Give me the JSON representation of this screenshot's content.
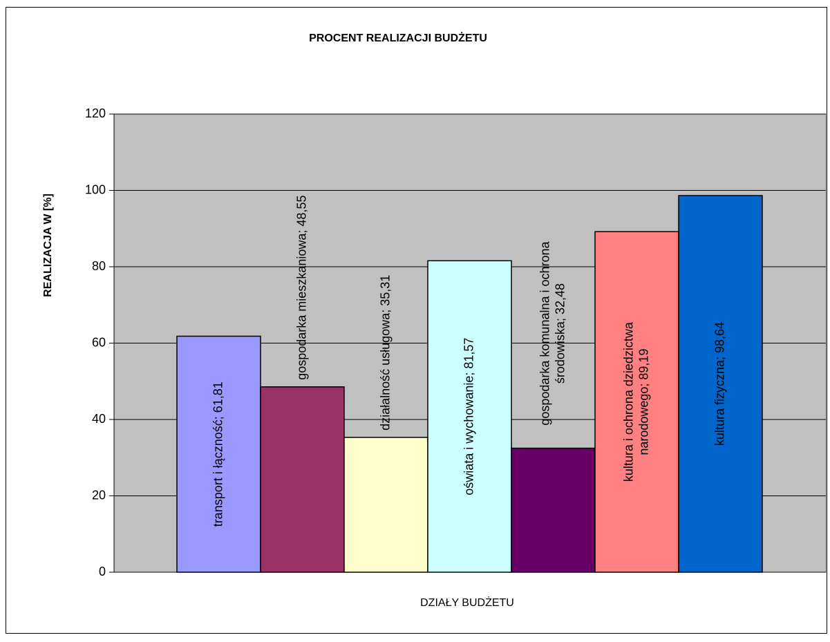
{
  "chart_data": {
    "type": "bar",
    "title": "PROCENT REALIZACJI BUDŻETU",
    "xlabel": "DZIAŁY BUDŻETU",
    "ylabel": "REALIZACJA W [%]",
    "values": [
      61.81,
      48.55,
      35.31,
      81.57,
      32.48,
      89.19,
      98.64
    ],
    "value_labels": [
      "transport i łączność; 61,81",
      "gospodarka mieszkaniowa; 48,55",
      "działalność usługowa; 35,31",
      "oświata i wychowanie; 81,57",
      "gospodarka komunalna i ochrona środowiska; 32,48",
      "kultura i ochrona dziedzictwa narodowego; 89,19",
      "kultura fizyczna; 98,64"
    ],
    "colors": [
      "#9999ff",
      "#993366",
      "#ffffcc",
      "#ccffff",
      "#660066",
      "#ff8080",
      "#0066cc"
    ],
    "ylim": [
      0,
      120
    ],
    "yticks": [
      0,
      20,
      40,
      60,
      80,
      100,
      120
    ],
    "grid": true,
    "plot_background": "#c0c0c0"
  }
}
